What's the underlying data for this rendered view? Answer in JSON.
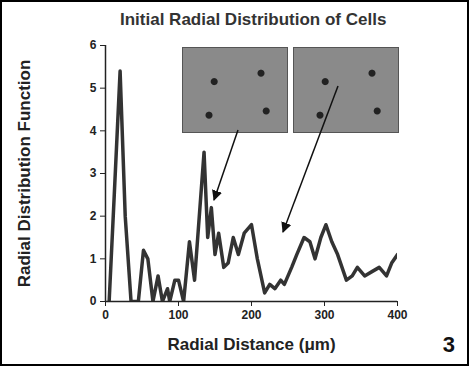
{
  "chart_data": {
    "type": "line",
    "title": "Initial Radial Distribution of Cells",
    "x_label": "Radial Distance (μm)",
    "y_label": "Radial Distribution Function",
    "annotations": [
      "3"
    ],
    "x": [
      5,
      12,
      20,
      27,
      35,
      45,
      52,
      58,
      65,
      72,
      78,
      85,
      88,
      95,
      100,
      107,
      115,
      122,
      135,
      140,
      145,
      150,
      155,
      162,
      168,
      175,
      182,
      190,
      200,
      208,
      218,
      225,
      232,
      240,
      245,
      255,
      262,
      272,
      280,
      287,
      295,
      302,
      310,
      318,
      330,
      338,
      345,
      355,
      365,
      375,
      385,
      392,
      400
    ],
    "values": [
      0,
      2.5,
      5.4,
      2.0,
      0,
      0,
      1.2,
      1.0,
      0,
      0.6,
      0,
      0.3,
      0,
      0.5,
      0.5,
      0,
      1.4,
      0.5,
      3.5,
      1.5,
      2.2,
      1.1,
      1.6,
      0.8,
      0.9,
      1.5,
      1.1,
      1.6,
      1.8,
      1.0,
      0.2,
      0.4,
      0.3,
      0.5,
      0.4,
      0.8,
      1.1,
      1.5,
      1.4,
      1.0,
      1.5,
      1.8,
      1.4,
      1.1,
      0.5,
      0.6,
      0.8,
      0.6,
      0.7,
      0.8,
      0.6,
      0.9,
      1.1
    ],
    "color": "#333333",
    "line_style": "solid",
    "xlim": [
      0,
      400
    ],
    "xticks": [
      0,
      100,
      200,
      300,
      400
    ],
    "ylim": [
      0,
      6
    ],
    "yticks": [
      0,
      1,
      2,
      3,
      4,
      5,
      6
    ],
    "grid": false
  }
}
